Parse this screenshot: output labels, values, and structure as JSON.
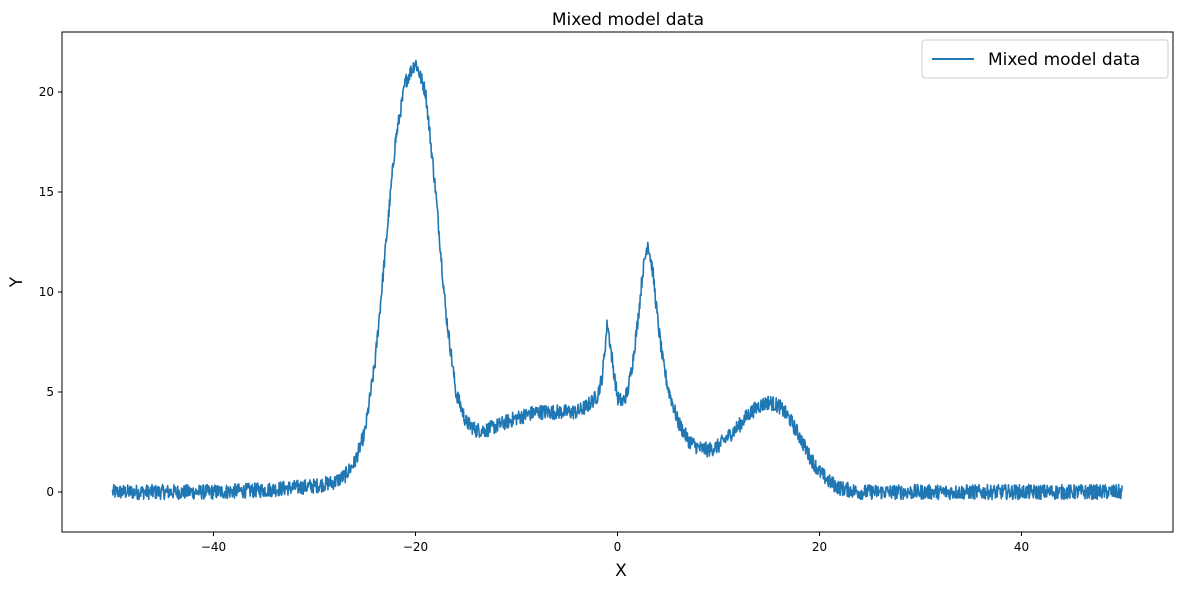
{
  "chart_data": {
    "type": "line",
    "title": "Mixed model data",
    "xlabel": "X",
    "ylabel": "Y",
    "xlim": [
      -55,
      55
    ],
    "ylim": [
      -2,
      23
    ],
    "xticks": [
      -40,
      -20,
      0,
      20,
      40
    ],
    "yticks": [
      0,
      5,
      10,
      15,
      20
    ],
    "grid": false,
    "legend_position": "top-right",
    "color": "#1f77b4",
    "series": [
      {
        "name": "Mixed model data",
        "x": [
          -50,
          -45,
          -40,
          -35,
          -30,
          -28,
          -27,
          -26,
          -25,
          -24,
          -23,
          -22,
          -21,
          -20,
          -19,
          -18,
          -17,
          -16,
          -15,
          -14,
          -13,
          -12,
          -10,
          -8,
          -6,
          -4,
          -3,
          -2,
          -1.5,
          -1,
          -0.5,
          0,
          0.5,
          1,
          1.5,
          2,
          2.5,
          3,
          3.5,
          4,
          4.5,
          5,
          6,
          7,
          8,
          9,
          10,
          11,
          12,
          13,
          14,
          15,
          16,
          17,
          18,
          19,
          20,
          21,
          22,
          23,
          24,
          26,
          30,
          35,
          40,
          45,
          50
        ],
        "y": [
          0,
          0,
          0,
          0.1,
          0.3,
          0.5,
          0.8,
          1.5,
          3,
          6.5,
          12,
          17.5,
          20.5,
          21.5,
          20,
          15,
          9,
          5,
          3.5,
          3.1,
          3.1,
          3.3,
          3.7,
          4,
          4,
          4,
          4.3,
          4.8,
          5.8,
          8.5,
          6.5,
          4.7,
          4.5,
          5,
          6.5,
          8.5,
          11,
          12.5,
          11,
          8.5,
          6.5,
          5.2,
          3.5,
          2.6,
          2.2,
          2.1,
          2.3,
          2.8,
          3.3,
          3.9,
          4.3,
          4.5,
          4.3,
          3.7,
          2.8,
          1.8,
          1,
          0.5,
          0.2,
          0.1,
          0,
          0,
          0,
          0,
          0,
          0,
          0
        ]
      }
    ]
  }
}
